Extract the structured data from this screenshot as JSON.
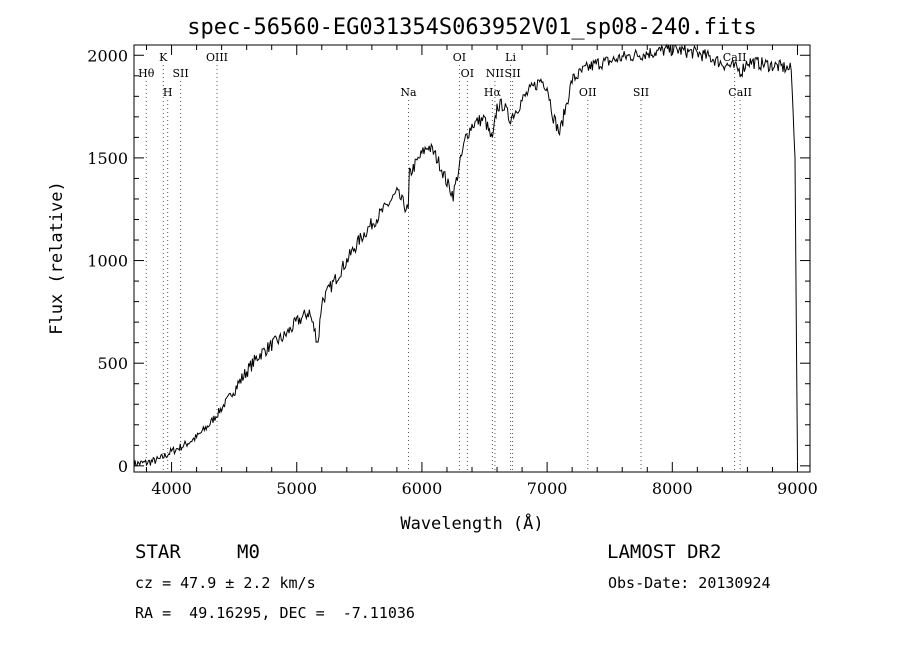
{
  "chart_data": {
    "type": "line",
    "title": "spec-56560-EG031354S063952V01_sp08-240.fits",
    "xlabel": "Wavelength (Å)",
    "ylabel": "Flux (relative)",
    "xlim": [
      3700,
      9100
    ],
    "ylim": [
      -30,
      2050
    ],
    "xticks": [
      4000,
      5000,
      6000,
      7000,
      8000,
      9000
    ],
    "yticks": [
      0,
      500,
      1000,
      1500,
      2000
    ],
    "xtick_labels": [
      "4000",
      "5000",
      "6000",
      "7000",
      "8000",
      "9000"
    ],
    "ytick_labels": [
      "0",
      "500",
      "1000",
      "1500",
      "2000"
    ],
    "grid": false,
    "series": [
      {
        "x": [
          3700,
          3800,
          3900,
          4000,
          4100,
          4200,
          4300,
          4400,
          4500,
          4600,
          4700,
          4800,
          4900,
          5000,
          5100,
          5170,
          5200,
          5300,
          5400,
          5500,
          5600,
          5700,
          5800,
          5890,
          5900,
          6000,
          6050,
          6100,
          6150,
          6200,
          6250,
          6300,
          6350,
          6400,
          6450,
          6500,
          6563,
          6600,
          6650,
          6700,
          6750,
          6800,
          6850,
          6900,
          6950,
          7000,
          7050,
          7100,
          7150,
          7200,
          7300,
          7400,
          7500,
          7600,
          7700,
          7800,
          7900,
          8000,
          8100,
          8200,
          8300,
          8400,
          8500,
          8550,
          8600,
          8700,
          8800,
          8900,
          8950,
          8980,
          9000
        ],
        "y": [
          10,
          15,
          30,
          70,
          100,
          140,
          200,
          280,
          370,
          460,
          540,
          590,
          630,
          700,
          750,
          600,
          800,
          900,
          1000,
          1100,
          1180,
          1250,
          1330,
          1240,
          1420,
          1520,
          1560,
          1520,
          1460,
          1380,
          1320,
          1460,
          1600,
          1660,
          1680,
          1690,
          1580,
          1750,
          1760,
          1690,
          1730,
          1780,
          1820,
          1850,
          1880,
          1850,
          1700,
          1620,
          1750,
          1880,
          1930,
          1960,
          1970,
          1990,
          2000,
          2010,
          2020,
          2030,
          2020,
          2010,
          1990,
          1960,
          1940,
          1920,
          1970,
          1960,
          1950,
          1940,
          1930,
          1500,
          20
        ]
      }
    ],
    "line_markers": [
      {
        "label": "Hθ",
        "x": 3798,
        "row": 1
      },
      {
        "label": "K",
        "x": 3934,
        "row": 0
      },
      {
        "label": "H",
        "x": 3969,
        "row": 2
      },
      {
        "label": "SII",
        "x": 4072,
        "row": 1
      },
      {
        "label": "OIII",
        "x": 4363,
        "row": 0
      },
      {
        "label": "Na",
        "x": 5893,
        "row": 2
      },
      {
        "label": "OI",
        "x": 6300,
        "row": 0
      },
      {
        "label": "OI",
        "x": 6363,
        "row": 1
      },
      {
        "label": "Hα",
        "x": 6563,
        "row": 2
      },
      {
        "label": "NII",
        "x": 6583,
        "row": 1
      },
      {
        "label": "Li",
        "x": 6708,
        "row": 0
      },
      {
        "label": "SII",
        "x": 6724,
        "row": 1
      },
      {
        "label": "OII",
        "x": 7325,
        "row": 2
      },
      {
        "label": "SII",
        "x": 7750,
        "row": 2
      },
      {
        "label": "CaII",
        "x": 8498,
        "row": 0
      },
      {
        "label": "CaII",
        "x": 8542,
        "row": 2
      }
    ]
  },
  "info": {
    "object_class": "STAR",
    "subclass": "M0",
    "survey": "LAMOST DR2",
    "redshift": "cz = 47.9 ± 2.2 km/s",
    "obs_date": "Obs-Date: 20130924",
    "coords": "RA =  49.16295, DEC =  -7.11036"
  }
}
